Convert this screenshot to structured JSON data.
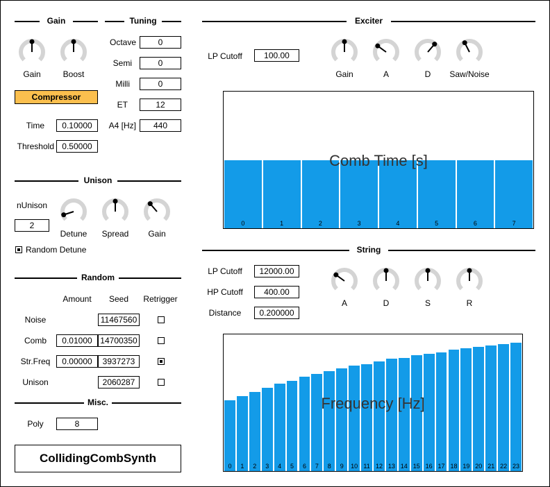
{
  "gain_section": {
    "title": "Gain",
    "knobs": [
      {
        "label": "Gain",
        "value": 0.5
      },
      {
        "label": "Boost",
        "value": 0.5
      }
    ],
    "compressor_label": "Compressor",
    "time_label": "Time",
    "time_value": "0.10000",
    "threshold_label": "Threshold",
    "threshold_value": "0.50000"
  },
  "tuning": {
    "title": "Tuning",
    "rows": [
      {
        "label": "Octave",
        "value": "0"
      },
      {
        "label": "Semi",
        "value": "0"
      },
      {
        "label": "Milli",
        "value": "0"
      },
      {
        "label": "ET",
        "value": "12"
      },
      {
        "label": "A4 [Hz]",
        "value": "440"
      }
    ]
  },
  "unison": {
    "title": "Unison",
    "n_label": "nUnison",
    "n_value": "2",
    "random_detune_label": "Random Detune",
    "random_detune_checked": true,
    "knobs": [
      {
        "label": "Detune",
        "value": 0.1
      },
      {
        "label": "Spread",
        "value": 0.5
      },
      {
        "label": "Gain",
        "value": 0.35
      }
    ]
  },
  "random": {
    "title": "Random",
    "headers": {
      "amount": "Amount",
      "seed": "Seed",
      "retrigger": "Retrigger"
    },
    "rows": [
      {
        "label": "Noise",
        "amount": "",
        "seed": "11467560",
        "retrigger": false
      },
      {
        "label": "Comb",
        "amount": "0.01000",
        "seed": "14700350",
        "retrigger": false
      },
      {
        "label": "Str.Freq",
        "amount": "0.00000",
        "seed": "3937273",
        "retrigger": true
      },
      {
        "label": "Unison",
        "amount": "",
        "seed": "2060287",
        "retrigger": false
      }
    ]
  },
  "misc": {
    "title": "Misc.",
    "poly_label": "Poly",
    "poly_value": "8"
  },
  "plugin_name": "CollidingCombSynth",
  "exciter": {
    "title": "Exciter",
    "lp_cutoff_label": "LP Cutoff",
    "lp_cutoff_value": "100.00",
    "knobs": [
      {
        "label": "Gain",
        "value": 0.5
      },
      {
        "label": "A",
        "value": 0.3
      },
      {
        "label": "D",
        "value": 0.65
      },
      {
        "label": "Saw/Noise",
        "value": 0.4
      }
    ],
    "chart_label": "Comb Time [s]"
  },
  "string": {
    "title": "String",
    "lp_cutoff_label": "LP Cutoff",
    "lp_cutoff_value": "12000.00",
    "hp_cutoff_label": "HP Cutoff",
    "hp_cutoff_value": "400.00",
    "distance_label": "Distance",
    "distance_value": "0.200000",
    "knobs": [
      {
        "label": "A",
        "value": 0.3
      },
      {
        "label": "D",
        "value": 0.5
      },
      {
        "label": "S",
        "value": 0.5
      },
      {
        "label": "R",
        "value": 0.5
      }
    ],
    "chart_label": "Frequency [Hz]"
  },
  "chart_data": [
    {
      "type": "bar",
      "title": "Comb Time [s]",
      "categories": [
        "0",
        "1",
        "2",
        "3",
        "4",
        "5",
        "6",
        "7"
      ],
      "values": [
        0.5,
        0.5,
        0.5,
        0.5,
        0.5,
        0.5,
        0.5,
        0.5
      ],
      "ylim": [
        0,
        1
      ]
    },
    {
      "type": "bar",
      "title": "Frequency [Hz]",
      "categories": [
        "0",
        "1",
        "2",
        "3",
        "4",
        "5",
        "6",
        "7",
        "8",
        "9",
        "10",
        "11",
        "12",
        "13",
        "14",
        "15",
        "16",
        "17",
        "18",
        "19",
        "20",
        "21",
        "22",
        "23"
      ],
      "values": [
        0.52,
        0.55,
        0.58,
        0.61,
        0.64,
        0.66,
        0.69,
        0.71,
        0.73,
        0.75,
        0.77,
        0.78,
        0.8,
        0.82,
        0.83,
        0.85,
        0.86,
        0.87,
        0.89,
        0.9,
        0.91,
        0.92,
        0.93,
        0.94
      ],
      "ylim": [
        0,
        1
      ]
    }
  ],
  "colors": {
    "bar": "#139be8",
    "compressor": "#fbbf4e",
    "knob_track": "#d4d4d4"
  }
}
